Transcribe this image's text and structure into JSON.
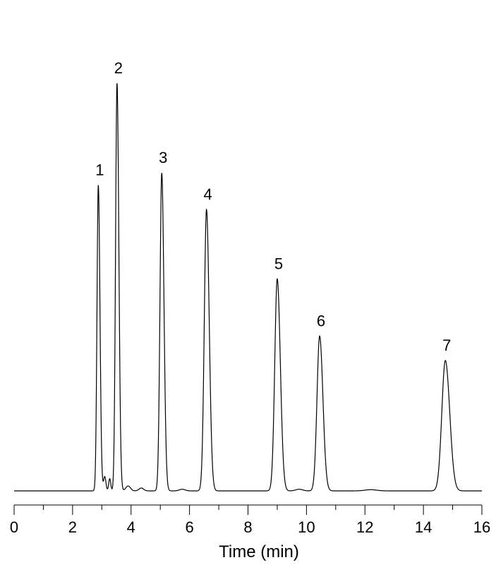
{
  "chart_data": {
    "type": "line",
    "xlabel": "Time (min)",
    "ylabel": "",
    "title": "",
    "xlim": [
      0,
      16
    ],
    "x_ticks": [
      0,
      2,
      4,
      6,
      8,
      10,
      12,
      14,
      16
    ],
    "x_tick_labels": [
      "0",
      "2",
      "4",
      "6",
      "8",
      "10",
      "12",
      "14",
      "16"
    ],
    "y_axis_shown": false,
    "grid": false,
    "legend": "none",
    "line_color": "#000000",
    "peaks": [
      {
        "label": "1",
        "time": 2.88,
        "height": 0.75
      },
      {
        "label": "2",
        "time": 3.52,
        "height": 1.0
      },
      {
        "label": "3",
        "time": 5.05,
        "height": 0.78
      },
      {
        "label": "4",
        "time": 6.58,
        "height": 0.69
      },
      {
        "label": "5",
        "time": 9.0,
        "height": 0.52
      },
      {
        "label": "6",
        "time": 10.45,
        "height": 0.38
      },
      {
        "label": "7",
        "time": 14.75,
        "height": 0.32
      }
    ]
  }
}
